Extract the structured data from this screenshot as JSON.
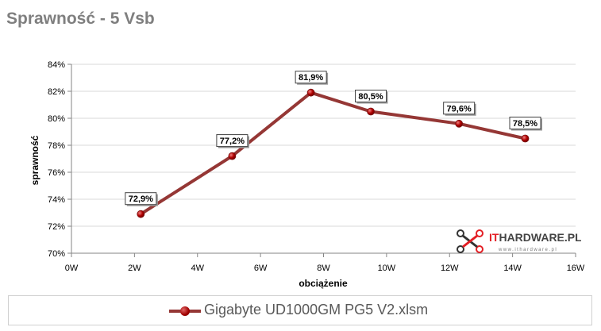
{
  "title": "Sprawność - 5 Vsb",
  "chart_data": {
    "type": "line",
    "xlabel": "obciążenie",
    "ylabel": "sprawność",
    "xlim": [
      0,
      16
    ],
    "ylim": [
      70,
      84
    ],
    "x_ticks": [
      "0W",
      "2W",
      "4W",
      "6W",
      "8W",
      "10W",
      "12W",
      "14W",
      "16W"
    ],
    "y_ticks": [
      "70%",
      "72%",
      "74%",
      "76%",
      "78%",
      "80%",
      "82%",
      "84%"
    ],
    "grid": "horizontal",
    "legend": "bottom",
    "series": [
      {
        "name": "Gigabyte UD1000GM PG5 V2.xlsm",
        "color": "#953735",
        "x": [
          2.2,
          5.1,
          7.6,
          9.5,
          12.3,
          14.4
        ],
        "y": [
          72.9,
          77.2,
          81.9,
          80.5,
          79.6,
          78.5
        ],
        "labels": [
          "72,9%",
          "77,2%",
          "81,9%",
          "80,5%",
          "79,6%",
          "78,5%"
        ]
      }
    ]
  },
  "logo": {
    "text_it": "IT",
    "text_rest": "HARDWARE.PL",
    "subtext": "www.ithardware.pl",
    "accent": "#e31e24"
  }
}
